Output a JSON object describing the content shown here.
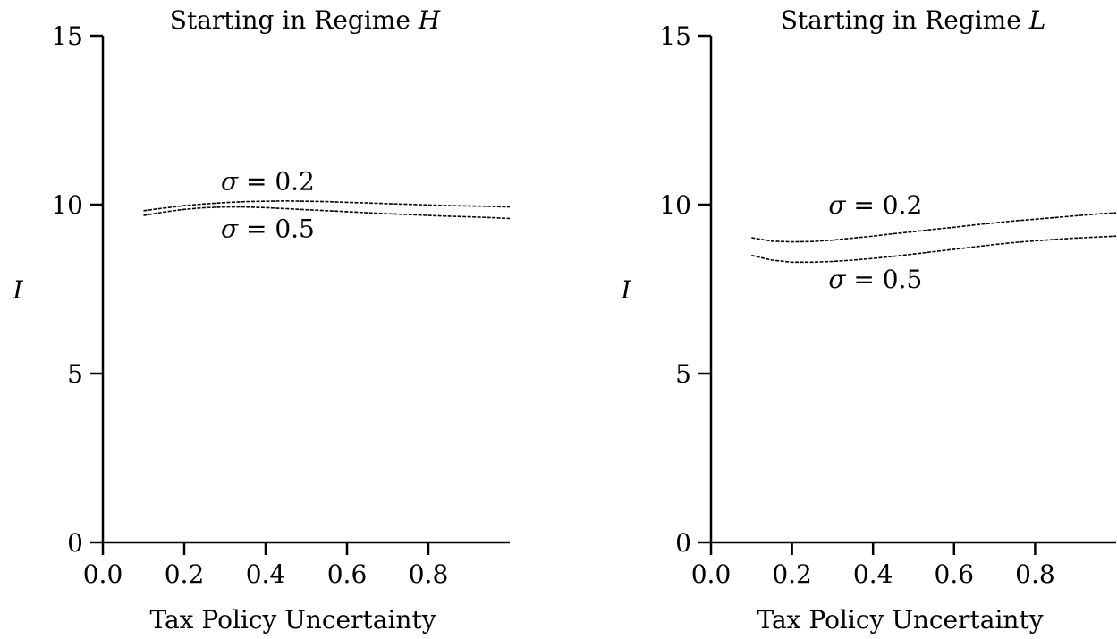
{
  "chart_data": [
    {
      "type": "line",
      "title": "Starting in Regime H",
      "title_prefix": "Starting in Regime ",
      "title_italic": "H",
      "xlabel": "Tax Policy Uncertainty",
      "ylabel": "I",
      "xlim": [
        0.0,
        1.0
      ],
      "ylim": [
        0,
        15
      ],
      "xticks": [
        "0.0",
        "0.2",
        "0.4",
        "0.6",
        "0.8"
      ],
      "yticks": [
        "0",
        "5",
        "10",
        "15"
      ],
      "grid": false,
      "series": [
        {
          "name": "σ = 0.2",
          "x": [
            0.1,
            0.15,
            0.2,
            0.25,
            0.3,
            0.35,
            0.4,
            0.45,
            0.5,
            0.55,
            0.6,
            0.65,
            0.7,
            0.75,
            0.8,
            0.85,
            0.9,
            0.95,
            1.0
          ],
          "y": [
            9.82,
            9.9,
            9.97,
            10.02,
            10.06,
            10.09,
            10.1,
            10.11,
            10.1,
            10.09,
            10.07,
            10.05,
            10.03,
            10.01,
            9.99,
            9.97,
            9.96,
            9.95,
            9.93
          ]
        },
        {
          "name": "σ = 0.5",
          "x": [
            0.1,
            0.15,
            0.2,
            0.25,
            0.3,
            0.35,
            0.4,
            0.45,
            0.5,
            0.55,
            0.6,
            0.65,
            0.7,
            0.75,
            0.8,
            0.85,
            0.9,
            0.95,
            1.0
          ],
          "y": [
            9.68,
            9.78,
            9.86,
            9.91,
            9.93,
            9.93,
            9.91,
            9.88,
            9.85,
            9.82,
            9.79,
            9.76,
            9.73,
            9.71,
            9.68,
            9.66,
            9.64,
            9.62,
            9.59
          ]
        }
      ],
      "annotations": [
        {
          "series": "σ = 0.2",
          "greek": "σ",
          "rest": " = 0.2",
          "x": 0.29,
          "y": 10.7
        },
        {
          "series": "σ = 0.5",
          "greek": "σ",
          "rest": " = 0.5",
          "x": 0.29,
          "y": 9.3
        }
      ]
    },
    {
      "type": "line",
      "title": "Starting in Regime L",
      "title_prefix": "Starting in Regime ",
      "title_italic": "L",
      "xlabel": "Tax Policy Uncertainty",
      "ylabel": "I",
      "xlim": [
        0.0,
        1.0
      ],
      "ylim": [
        0,
        15
      ],
      "xticks": [
        "0.0",
        "0.2",
        "0.4",
        "0.6",
        "0.8"
      ],
      "yticks": [
        "0",
        "5",
        "10",
        "15"
      ],
      "grid": false,
      "series": [
        {
          "name": "σ = 0.2",
          "x": [
            0.1,
            0.15,
            0.2,
            0.25,
            0.3,
            0.35,
            0.4,
            0.45,
            0.5,
            0.55,
            0.6,
            0.65,
            0.7,
            0.75,
            0.8,
            0.85,
            0.9,
            0.95,
            1.0
          ],
          "y": [
            9.02,
            8.92,
            8.9,
            8.91,
            8.95,
            9.01,
            9.07,
            9.14,
            9.2,
            9.27,
            9.33,
            9.4,
            9.46,
            9.52,
            9.57,
            9.62,
            9.67,
            9.72,
            9.76
          ]
        },
        {
          "name": "σ = 0.5",
          "x": [
            0.1,
            0.15,
            0.2,
            0.25,
            0.3,
            0.35,
            0.4,
            0.45,
            0.5,
            0.55,
            0.6,
            0.65,
            0.7,
            0.75,
            0.8,
            0.85,
            0.9,
            0.95,
            1.0
          ],
          "y": [
            8.5,
            8.36,
            8.3,
            8.3,
            8.32,
            8.36,
            8.41,
            8.47,
            8.54,
            8.61,
            8.68,
            8.75,
            8.82,
            8.88,
            8.93,
            8.97,
            9.01,
            9.04,
            9.07
          ]
        }
      ],
      "annotations": [
        {
          "series": "σ = 0.2",
          "greek": "σ",
          "rest": " = 0.2",
          "x": 0.29,
          "y": 10.0
        },
        {
          "series": "σ = 0.5",
          "greek": "σ",
          "rest": " = 0.5",
          "x": 0.29,
          "y": 7.8
        }
      ]
    }
  ]
}
